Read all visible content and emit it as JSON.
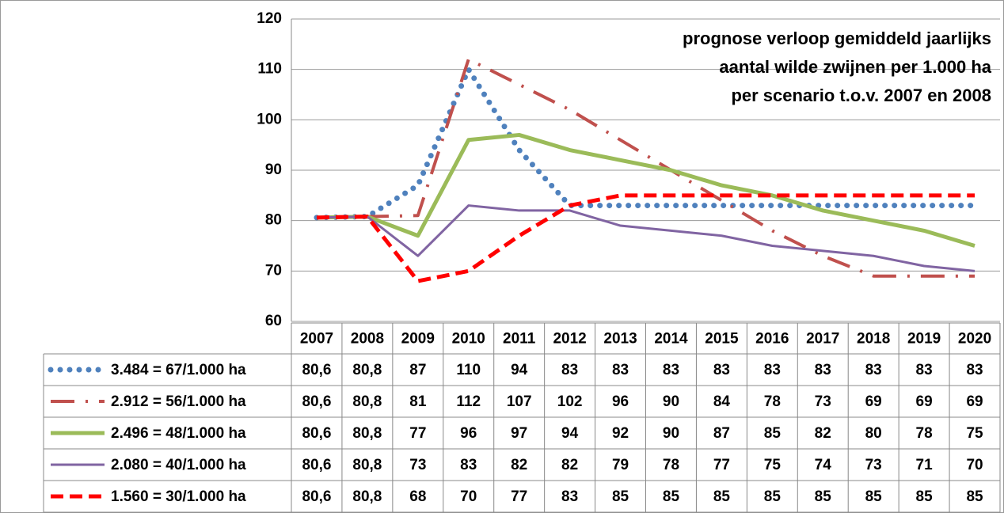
{
  "chart_data": {
    "type": "line",
    "title_lines": [
      "prognose verloop gemiddeld jaarlijks",
      "aantal wilde zwijnen per 1.000 ha",
      "per scenario t.o.v. 2007 en 2008"
    ],
    "categories": [
      "2007",
      "2008",
      "2009",
      "2010",
      "2011",
      "2012",
      "2013",
      "2014",
      "2015",
      "2016",
      "2017",
      "2018",
      "2019",
      "2020"
    ],
    "ylim": [
      60,
      120
    ],
    "yticks": [
      60,
      70,
      80,
      90,
      100,
      110,
      120
    ],
    "grid": true,
    "series": [
      {
        "name": "3.484 = 67/1.000 ha",
        "color": "#4f81bd",
        "style": "dotted",
        "values": [
          80.6,
          80.8,
          87,
          110,
          94,
          83,
          83,
          83,
          83,
          83,
          83,
          83,
          83,
          83
        ],
        "value_labels": [
          "80,6",
          "80,8",
          "87",
          "110",
          "94",
          "83",
          "83",
          "83",
          "83",
          "83",
          "83",
          "83",
          "83",
          "83"
        ]
      },
      {
        "name": "2.912 = 56/1.000 ha",
        "color": "#c0504d",
        "style": "dashdot",
        "values": [
          80.6,
          80.8,
          81,
          112,
          107,
          102,
          96,
          90,
          84,
          78,
          73,
          69,
          69,
          69
        ],
        "value_labels": [
          "80,6",
          "80,8",
          "81",
          "112",
          "107",
          "102",
          "96",
          "90",
          "84",
          "78",
          "73",
          "69",
          "69",
          "69"
        ]
      },
      {
        "name": "2.496 = 48/1.000 ha",
        "color": "#9bbb59",
        "style": "solid-thick",
        "values": [
          80.6,
          80.8,
          77,
          96,
          97,
          94,
          92,
          90,
          87,
          85,
          82,
          80,
          78,
          75
        ],
        "value_labels": [
          "80,6",
          "80,8",
          "77",
          "96",
          "97",
          "94",
          "92",
          "90",
          "87",
          "85",
          "82",
          "80",
          "78",
          "75"
        ]
      },
      {
        "name": "2.080 = 40/1.000 ha",
        "color": "#8064a2",
        "style": "solid",
        "values": [
          80.6,
          80.8,
          73,
          83,
          82,
          82,
          79,
          78,
          77,
          75,
          74,
          73,
          71,
          70
        ],
        "value_labels": [
          "80,6",
          "80,8",
          "73",
          "83",
          "82",
          "82",
          "79",
          "78",
          "77",
          "75",
          "74",
          "73",
          "71",
          "70"
        ]
      },
      {
        "name": "1.560 = 30/1.000 ha",
        "color": "#ff0000",
        "style": "dashed",
        "values": [
          80.6,
          80.8,
          68,
          70,
          77,
          83,
          85,
          85,
          85,
          85,
          85,
          85,
          85,
          85
        ],
        "value_labels": [
          "80,6",
          "80,8",
          "68",
          "70",
          "77",
          "83",
          "85",
          "85",
          "85",
          "85",
          "85",
          "85",
          "85",
          "85"
        ]
      }
    ]
  }
}
